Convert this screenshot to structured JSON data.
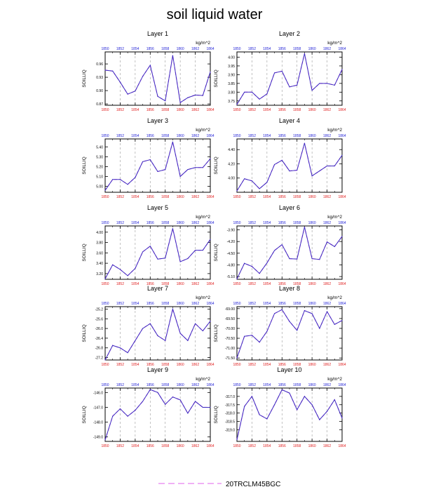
{
  "title": "soil liquid water",
  "units": "kg/m^2",
  "ylabel": "SOILLIQ",
  "colors": {
    "series": "#3b2dbf",
    "control": "#e060ec",
    "top_ticks": "#1f1fd6",
    "bottom_ticks": "#e01f1f",
    "axis": "#000000",
    "grid": "#999999"
  },
  "legend": [
    {
      "name": "20TRCLM45BGC",
      "color": "#e060ec",
      "dash": true
    }
  ],
  "chart_data": [
    {
      "type": "line",
      "title": "Layer 1",
      "x": [
        1850,
        1851,
        1852,
        1853,
        1854,
        1855,
        1856,
        1857,
        1858,
        1859,
        1860,
        1861,
        1862,
        1863,
        1864
      ],
      "values": [
        0.946,
        0.944,
        0.919,
        0.892,
        0.899,
        0.932,
        0.957,
        0.887,
        0.877,
        0.979,
        0.873,
        0.884,
        0.89,
        0.889,
        0.942
      ],
      "xticks": [
        1850,
        1852,
        1854,
        1856,
        1858,
        1860,
        1862,
        1864
      ],
      "yticks": [
        0.87,
        0.9,
        0.93,
        0.96
      ],
      "ytick_labels": [
        "0.87",
        "0.90",
        "0.93",
        "0.96"
      ],
      "ylim": [
        0.867,
        0.987
      ]
    },
    {
      "type": "line",
      "title": "Layer 2",
      "x": [
        1850,
        1851,
        1852,
        1853,
        1854,
        1855,
        1856,
        1857,
        1858,
        1859,
        1860,
        1861,
        1862,
        1863,
        1864
      ],
      "values": [
        3.73,
        3.8,
        3.8,
        3.76,
        3.79,
        3.91,
        3.92,
        3.83,
        3.84,
        4.02,
        3.81,
        3.85,
        3.85,
        3.84,
        3.93
      ],
      "xticks": [
        1850,
        1852,
        1854,
        1856,
        1858,
        1860,
        1862,
        1864
      ],
      "yticks": [
        3.75,
        3.8,
        3.85,
        3.9,
        3.95,
        4.0
      ],
      "ytick_labels": [
        "3.75",
        "3.80",
        "3.85",
        "3.90",
        "3.95",
        "4.00"
      ],
      "ylim": [
        3.725,
        4.03
      ]
    },
    {
      "type": "line",
      "title": "Layer 3",
      "x": [
        1850,
        1851,
        1852,
        1853,
        1854,
        1855,
        1856,
        1857,
        1858,
        1859,
        1860,
        1861,
        1862,
        1863,
        1864
      ],
      "values": [
        4.96,
        5.07,
        5.07,
        5.02,
        5.09,
        5.25,
        5.27,
        5.15,
        5.17,
        5.45,
        5.1,
        5.17,
        5.19,
        5.19,
        5.28
      ],
      "xticks": [
        1850,
        1852,
        1854,
        1856,
        1858,
        1860,
        1862,
        1864
      ],
      "yticks": [
        5.0,
        5.1,
        5.2,
        5.3,
        5.4
      ],
      "ytick_labels": [
        "5.00",
        "5.10",
        "5.20",
        "5.30",
        "5.40"
      ],
      "ylim": [
        4.94,
        5.48
      ]
    },
    {
      "type": "line",
      "title": "Layer 4",
      "x": [
        1850,
        1851,
        1852,
        1853,
        1854,
        1855,
        1856,
        1857,
        1858,
        1859,
        1860,
        1861,
        1862,
        1863,
        1864
      ],
      "values": [
        3.82,
        3.99,
        3.96,
        3.85,
        3.94,
        4.19,
        4.25,
        4.1,
        4.11,
        4.49,
        4.03,
        4.1,
        4.17,
        4.17,
        4.32
      ],
      "xticks": [
        1850,
        1852,
        1854,
        1856,
        1858,
        1860,
        1862,
        1864
      ],
      "yticks": [
        4.0,
        4.2,
        4.4
      ],
      "ytick_labels": [
        "4.00",
        "4.20",
        "4.40"
      ],
      "ylim": [
        3.8,
        4.55
      ]
    },
    {
      "type": "line",
      "title": "Layer 5",
      "x": [
        1850,
        1851,
        1852,
        1853,
        1854,
        1855,
        1856,
        1857,
        1858,
        1859,
        1860,
        1861,
        1862,
        1863,
        1864
      ],
      "values": [
        3.1,
        3.37,
        3.28,
        3.16,
        3.3,
        3.62,
        3.73,
        3.48,
        3.5,
        4.07,
        3.43,
        3.49,
        3.65,
        3.65,
        3.86
      ],
      "xticks": [
        1850,
        1852,
        1854,
        1856,
        1858,
        1860,
        1862,
        1864
      ],
      "yticks": [
        3.2,
        3.4,
        3.6,
        3.8,
        4.0
      ],
      "ytick_labels": [
        "3.20",
        "3.40",
        "3.60",
        "3.80",
        "4.00"
      ],
      "ylim": [
        3.09,
        4.12
      ]
    },
    {
      "type": "line",
      "title": "Layer 6",
      "x": [
        1850,
        1851,
        1852,
        1853,
        1854,
        1855,
        1856,
        1857,
        1858,
        1859,
        1860,
        1861,
        1862,
        1863,
        1864
      ],
      "values": [
        -5.16,
        -4.76,
        -4.84,
        -5.02,
        -4.75,
        -4.43,
        -4.28,
        -4.64,
        -4.65,
        -3.83,
        -4.64,
        -4.66,
        -4.21,
        -4.33,
        -4.07
      ],
      "xticks": [
        1850,
        1852,
        1854,
        1856,
        1858,
        1860,
        1862,
        1864
      ],
      "yticks": [
        -5.1,
        -4.8,
        -4.5,
        -4.2,
        -3.9
      ],
      "ytick_labels": [
        "-5.10",
        "-4.80",
        "-4.50",
        "-4.20",
        "-3.90"
      ],
      "ylim": [
        -5.17,
        -3.8
      ]
    },
    {
      "type": "line",
      "title": "Layer 7",
      "x": [
        1850,
        1851,
        1852,
        1853,
        1854,
        1855,
        1856,
        1857,
        1858,
        1859,
        1860,
        1861,
        1862,
        1863,
        1864
      ],
      "values": [
        -27.3,
        -26.7,
        -26.8,
        -27.0,
        -26.5,
        -26.0,
        -25.8,
        -26.3,
        -26.5,
        -25.2,
        -26.2,
        -26.5,
        -25.8,
        -26.1,
        -25.7
      ],
      "xticks": [
        1850,
        1852,
        1854,
        1856,
        1858,
        1860,
        1862,
        1864
      ],
      "yticks": [
        -27.2,
        -26.8,
        -26.4,
        -26.0,
        -25.6,
        -25.2
      ],
      "ytick_labels": [
        "-27.2",
        "-26.8",
        "-26.4",
        "-26.0",
        "-25.6",
        "-25.2"
      ],
      "ylim": [
        -27.3,
        -25.1
      ]
    },
    {
      "type": "line",
      "title": "Layer 8",
      "x": [
        1850,
        1851,
        1852,
        1853,
        1854,
        1855,
        1856,
        1857,
        1858,
        1859,
        1860,
        1861,
        1862,
        1863,
        1864
      ],
      "values": [
        -71.5,
        -70.4,
        -70.35,
        -70.7,
        -70.15,
        -69.25,
        -69.05,
        -69.65,
        -70.1,
        -69.1,
        -69.25,
        -70.0,
        -69.15,
        -69.8,
        -69.6
      ],
      "xticks": [
        1850,
        1852,
        1854,
        1856,
        1858,
        1860,
        1862,
        1864
      ],
      "yticks": [
        -71.5,
        -71.0,
        -70.5,
        -70.0,
        -69.5,
        -69.0
      ],
      "ytick_labels": [
        "-71.50",
        "-71.00",
        "-70.50",
        "-70.00",
        "-69.50",
        "-69.00"
      ],
      "ylim": [
        -71.6,
        -68.9
      ]
    },
    {
      "type": "line",
      "title": "Layer 9",
      "x": [
        1850,
        1851,
        1852,
        1853,
        1854,
        1855,
        1856,
        1857,
        1858,
        1859,
        1860,
        1861,
        1862,
        1863,
        1864
      ],
      "values": [
        -149.2,
        -147.6,
        -147.1,
        -147.6,
        -147.2,
        -146.6,
        -145.8,
        -146.0,
        -146.8,
        -146.3,
        -146.5,
        -147.4,
        -146.6,
        -147.0,
        -147.0
      ],
      "xticks": [
        1850,
        1852,
        1854,
        1856,
        1858,
        1860,
        1862,
        1864
      ],
      "yticks": [
        -149.0,
        -148.0,
        -147.0,
        -146.0
      ],
      "ytick_labels": [
        "-149.0",
        "-148.0",
        "-147.0",
        "-146.0"
      ],
      "ylim": [
        -149.3,
        -145.7
      ]
    },
    {
      "type": "line",
      "title": "Layer 10",
      "x": [
        1850,
        1851,
        1852,
        1853,
        1854,
        1855,
        1856,
        1857,
        1858,
        1859,
        1860,
        1861,
        1862,
        1863,
        1864
      ],
      "values": [
        -319.6,
        -317.6,
        -317.0,
        -318.1,
        -318.35,
        -317.5,
        -316.6,
        -316.8,
        -317.8,
        -317.0,
        -317.5,
        -318.4,
        -317.9,
        -317.2,
        -318.3
      ],
      "xticks": [
        1850,
        1852,
        1854,
        1856,
        1858,
        1860,
        1862,
        1864
      ],
      "yticks": [
        -319.0,
        -318.5,
        -318.0,
        -317.5,
        -317.0
      ],
      "ytick_labels": [
        "-319.0",
        "-318.5",
        "-318.0",
        "-317.5",
        "-317.0"
      ],
      "ylim": [
        -319.7,
        -316.5
      ]
    }
  ]
}
